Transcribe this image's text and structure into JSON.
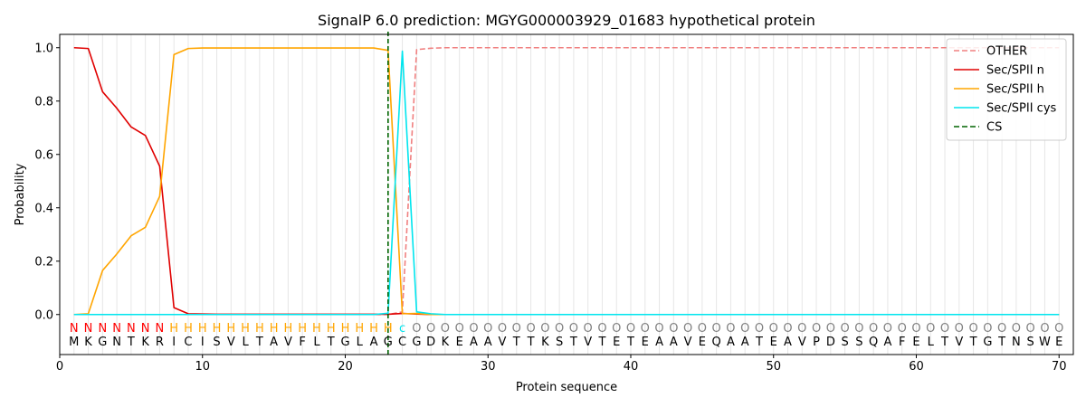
{
  "chart_data": {
    "type": "line",
    "title": "SignalP 6.0 prediction: MGYG000003929_01683 hypothetical protein",
    "xlabel": "Protein sequence",
    "ylabel": "Probability",
    "xlim": [
      0,
      71
    ],
    "ylim": [
      -0.15,
      1.05
    ],
    "xticks": [
      0,
      10,
      20,
      30,
      40,
      50,
      60,
      70
    ],
    "yticks": [
      "0.0",
      "0.2",
      "0.4",
      "0.6",
      "0.8",
      "1.0"
    ],
    "grid": "vertical lines at each residue",
    "legend_position": "top-right",
    "sequence": [
      "M",
      "K",
      "G",
      "N",
      "T",
      "K",
      "R",
      "I",
      "C",
      "I",
      "S",
      "V",
      "L",
      "T",
      "A",
      "V",
      "F",
      "L",
      "T",
      "G",
      "L",
      "A",
      "G",
      "C",
      "G",
      "D",
      "K",
      "E",
      "A",
      "A",
      "V",
      "T",
      "T",
      "K",
      "S",
      "T",
      "V",
      "T",
      "E",
      "T",
      "E",
      "A",
      "A",
      "V",
      "E",
      "Q",
      "A",
      "A",
      "T",
      "E",
      "A",
      "V",
      "P",
      "D",
      "S",
      "S",
      "Q",
      "A",
      "F",
      "E",
      "L",
      "T",
      "V",
      "T",
      "G",
      "T",
      "N",
      "S",
      "W",
      "E"
    ],
    "region_labels": [
      "N",
      "N",
      "N",
      "N",
      "N",
      "N",
      "N",
      "H",
      "H",
      "H",
      "H",
      "H",
      "H",
      "H",
      "H",
      "H",
      "H",
      "H",
      "H",
      "H",
      "H",
      "H",
      "H",
      "C",
      "O",
      "O",
      "O",
      "O",
      "O",
      "O",
      "O",
      "O",
      "O",
      "O",
      "O",
      "O",
      "O",
      "O",
      "O",
      "O",
      "O",
      "O",
      "O",
      "O",
      "O",
      "O",
      "O",
      "O",
      "O",
      "O",
      "O",
      "O",
      "O",
      "O",
      "O",
      "O",
      "O",
      "O",
      "O",
      "O",
      "O",
      "O",
      "O",
      "O",
      "O",
      "O",
      "O",
      "O",
      "O",
      "O"
    ],
    "region_label_colors": {
      "N": "#ff0000",
      "H": "#ffa500",
      "C": "#00e5ee",
      "O": "#808080"
    },
    "series": [
      {
        "name": "OTHER",
        "color": "#f08080",
        "dash": "dashed",
        "x": [
          1,
          2,
          3,
          4,
          5,
          6,
          7,
          8,
          9,
          10,
          11,
          12,
          13,
          14,
          15,
          16,
          17,
          18,
          19,
          20,
          21,
          22,
          23,
          24,
          25,
          26,
          27,
          28,
          29,
          30,
          31,
          32,
          33,
          34,
          35,
          36,
          37,
          38,
          39,
          40,
          41,
          42,
          43,
          44,
          45,
          46,
          47,
          48,
          49,
          50,
          51,
          52,
          53,
          54,
          55,
          56,
          57,
          58,
          59,
          60,
          61,
          62,
          63,
          64,
          65,
          66,
          67,
          68,
          69,
          70
        ],
        "values": [
          0,
          0,
          0,
          0,
          0,
          0,
          0,
          0,
          0,
          0,
          0,
          0,
          0,
          0,
          0,
          0,
          0,
          0,
          0,
          0,
          0,
          0,
          0,
          0.01,
          0.993,
          0.998,
          1,
          1,
          1,
          1,
          1,
          1,
          1,
          1,
          1,
          1,
          1,
          1,
          1,
          1,
          1,
          1,
          1,
          1,
          1,
          1,
          1,
          1,
          1,
          1,
          1,
          1,
          1,
          1,
          1,
          1,
          1,
          1,
          1,
          1,
          1,
          1,
          1,
          1,
          1,
          1,
          1,
          1,
          1,
          1
        ]
      },
      {
        "name": "Sec/SPII n",
        "color": "#e00000",
        "dash": "solid",
        "x": [
          1,
          2,
          3,
          4,
          5,
          6,
          7,
          8,
          9,
          10,
          11,
          12,
          13,
          14,
          15,
          16,
          17,
          18,
          19,
          20,
          21,
          22,
          23,
          24,
          25,
          26,
          27,
          28,
          29,
          30,
          31,
          32,
          33,
          34,
          35,
          36,
          37,
          38,
          39,
          40,
          41,
          42,
          43,
          44,
          45,
          46,
          47,
          48,
          49,
          50,
          51,
          52,
          53,
          54,
          55,
          56,
          57,
          58,
          59,
          60,
          61,
          62,
          63,
          64,
          65,
          66,
          67,
          68,
          69,
          70
        ],
        "values": [
          1.0,
          0.997,
          0.835,
          0.773,
          0.703,
          0.671,
          0.556,
          0.026,
          0.003,
          0.002,
          0.001,
          0.001,
          0.001,
          0.001,
          0.001,
          0.001,
          0.001,
          0.001,
          0.001,
          0.001,
          0.001,
          0.001,
          0.001,
          0.004,
          0.002,
          0,
          0,
          0,
          0,
          0,
          0,
          0,
          0,
          0,
          0,
          0,
          0,
          0,
          0,
          0,
          0,
          0,
          0,
          0,
          0,
          0,
          0,
          0,
          0,
          0,
          0,
          0,
          0,
          0,
          0,
          0,
          0,
          0,
          0,
          0,
          0,
          0,
          0,
          0,
          0,
          0,
          0,
          0,
          0,
          0
        ]
      },
      {
        "name": "Sec/SPII h",
        "color": "#ffa500",
        "dash": "solid",
        "x": [
          1,
          2,
          3,
          4,
          5,
          6,
          7,
          8,
          9,
          10,
          11,
          12,
          13,
          14,
          15,
          16,
          17,
          18,
          19,
          20,
          21,
          22,
          23,
          24,
          25,
          26,
          27,
          28,
          29,
          30,
          31,
          32,
          33,
          34,
          35,
          36,
          37,
          38,
          39,
          40,
          41,
          42,
          43,
          44,
          45,
          46,
          47,
          48,
          49,
          50,
          51,
          52,
          53,
          54,
          55,
          56,
          57,
          58,
          59,
          60,
          61,
          62,
          63,
          64,
          65,
          66,
          67,
          68,
          69,
          70
        ],
        "values": [
          0,
          0.003,
          0.165,
          0.227,
          0.295,
          0.327,
          0.443,
          0.974,
          0.997,
          0.999,
          0.999,
          0.999,
          0.999,
          0.999,
          0.999,
          0.999,
          0.999,
          0.999,
          0.999,
          0.999,
          0.999,
          0.999,
          0.99,
          0.003,
          0.004,
          0,
          0,
          0,
          0,
          0,
          0,
          0,
          0,
          0,
          0,
          0,
          0,
          0,
          0,
          0,
          0,
          0,
          0,
          0,
          0,
          0,
          0,
          0,
          0,
          0,
          0,
          0,
          0,
          0,
          0,
          0,
          0,
          0,
          0,
          0,
          0,
          0,
          0,
          0,
          0,
          0,
          0,
          0,
          0,
          0
        ]
      },
      {
        "name": "Sec/SPII cys",
        "color": "#00e5ee",
        "dash": "solid",
        "x": [
          1,
          2,
          3,
          4,
          5,
          6,
          7,
          8,
          9,
          10,
          11,
          12,
          13,
          14,
          15,
          16,
          17,
          18,
          19,
          20,
          21,
          22,
          23,
          24,
          25,
          26,
          27,
          28,
          29,
          30,
          31,
          32,
          33,
          34,
          35,
          36,
          37,
          38,
          39,
          40,
          41,
          42,
          43,
          44,
          45,
          46,
          47,
          48,
          49,
          50,
          51,
          52,
          53,
          54,
          55,
          56,
          57,
          58,
          59,
          60,
          61,
          62,
          63,
          64,
          65,
          66,
          67,
          68,
          69,
          70
        ],
        "values": [
          0,
          0,
          0,
          0,
          0,
          0,
          0,
          0,
          0,
          0,
          0,
          0,
          0,
          0,
          0,
          0,
          0,
          0,
          0,
          0,
          0,
          0,
          0.005,
          0.987,
          0.01,
          0.003,
          0,
          0,
          0,
          0,
          0,
          0,
          0,
          0,
          0,
          0,
          0,
          0,
          0,
          0,
          0,
          0,
          0,
          0,
          0,
          0,
          0,
          0,
          0,
          0,
          0,
          0,
          0,
          0,
          0,
          0,
          0,
          0,
          0,
          0,
          0,
          0,
          0,
          0,
          0,
          0,
          0,
          0,
          0,
          0
        ]
      }
    ],
    "cs": {
      "name": "CS",
      "x": 23,
      "color": "#006400"
    }
  }
}
